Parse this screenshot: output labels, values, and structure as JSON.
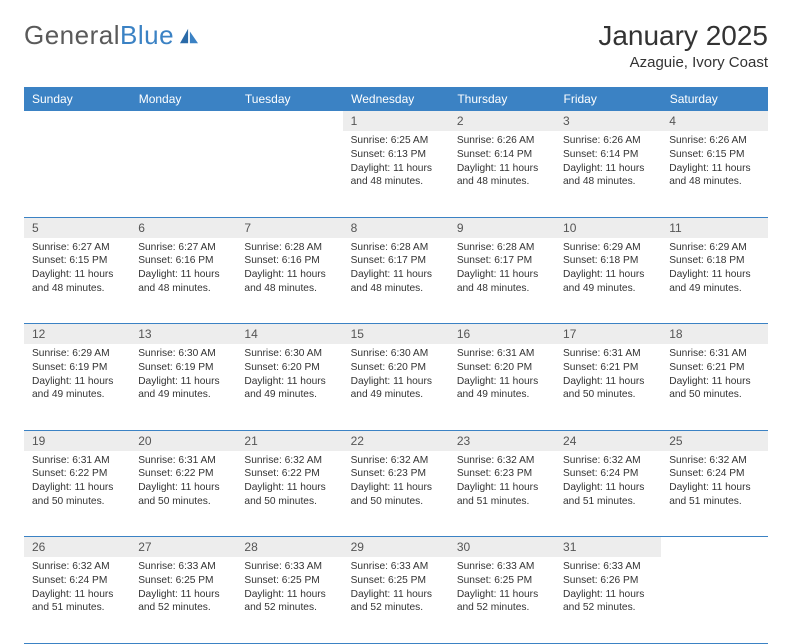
{
  "brand": {
    "name_a": "General",
    "name_b": "Blue"
  },
  "title": "January 2025",
  "location": "Azaguie, Ivory Coast",
  "colors": {
    "header_bg": "#3b82c4",
    "header_text": "#ffffff",
    "daynum_bg": "#ededed",
    "border": "#3b82c4",
    "text": "#333333",
    "page_bg": "#ffffff"
  },
  "day_headers": [
    "Sunday",
    "Monday",
    "Tuesday",
    "Wednesday",
    "Thursday",
    "Friday",
    "Saturday"
  ],
  "weeks": [
    [
      null,
      null,
      null,
      {
        "n": 1,
        "sr": "6:25 AM",
        "ss": "6:13 PM",
        "dl": "11 hours and 48 minutes."
      },
      {
        "n": 2,
        "sr": "6:26 AM",
        "ss": "6:14 PM",
        "dl": "11 hours and 48 minutes."
      },
      {
        "n": 3,
        "sr": "6:26 AM",
        "ss": "6:14 PM",
        "dl": "11 hours and 48 minutes."
      },
      {
        "n": 4,
        "sr": "6:26 AM",
        "ss": "6:15 PM",
        "dl": "11 hours and 48 minutes."
      }
    ],
    [
      {
        "n": 5,
        "sr": "6:27 AM",
        "ss": "6:15 PM",
        "dl": "11 hours and 48 minutes."
      },
      {
        "n": 6,
        "sr": "6:27 AM",
        "ss": "6:16 PM",
        "dl": "11 hours and 48 minutes."
      },
      {
        "n": 7,
        "sr": "6:28 AM",
        "ss": "6:16 PM",
        "dl": "11 hours and 48 minutes."
      },
      {
        "n": 8,
        "sr": "6:28 AM",
        "ss": "6:17 PM",
        "dl": "11 hours and 48 minutes."
      },
      {
        "n": 9,
        "sr": "6:28 AM",
        "ss": "6:17 PM",
        "dl": "11 hours and 48 minutes."
      },
      {
        "n": 10,
        "sr": "6:29 AM",
        "ss": "6:18 PM",
        "dl": "11 hours and 49 minutes."
      },
      {
        "n": 11,
        "sr": "6:29 AM",
        "ss": "6:18 PM",
        "dl": "11 hours and 49 minutes."
      }
    ],
    [
      {
        "n": 12,
        "sr": "6:29 AM",
        "ss": "6:19 PM",
        "dl": "11 hours and 49 minutes."
      },
      {
        "n": 13,
        "sr": "6:30 AM",
        "ss": "6:19 PM",
        "dl": "11 hours and 49 minutes."
      },
      {
        "n": 14,
        "sr": "6:30 AM",
        "ss": "6:20 PM",
        "dl": "11 hours and 49 minutes."
      },
      {
        "n": 15,
        "sr": "6:30 AM",
        "ss": "6:20 PM",
        "dl": "11 hours and 49 minutes."
      },
      {
        "n": 16,
        "sr": "6:31 AM",
        "ss": "6:20 PM",
        "dl": "11 hours and 49 minutes."
      },
      {
        "n": 17,
        "sr": "6:31 AM",
        "ss": "6:21 PM",
        "dl": "11 hours and 50 minutes."
      },
      {
        "n": 18,
        "sr": "6:31 AM",
        "ss": "6:21 PM",
        "dl": "11 hours and 50 minutes."
      }
    ],
    [
      {
        "n": 19,
        "sr": "6:31 AM",
        "ss": "6:22 PM",
        "dl": "11 hours and 50 minutes."
      },
      {
        "n": 20,
        "sr": "6:31 AM",
        "ss": "6:22 PM",
        "dl": "11 hours and 50 minutes."
      },
      {
        "n": 21,
        "sr": "6:32 AM",
        "ss": "6:22 PM",
        "dl": "11 hours and 50 minutes."
      },
      {
        "n": 22,
        "sr": "6:32 AM",
        "ss": "6:23 PM",
        "dl": "11 hours and 50 minutes."
      },
      {
        "n": 23,
        "sr": "6:32 AM",
        "ss": "6:23 PM",
        "dl": "11 hours and 51 minutes."
      },
      {
        "n": 24,
        "sr": "6:32 AM",
        "ss": "6:24 PM",
        "dl": "11 hours and 51 minutes."
      },
      {
        "n": 25,
        "sr": "6:32 AM",
        "ss": "6:24 PM",
        "dl": "11 hours and 51 minutes."
      }
    ],
    [
      {
        "n": 26,
        "sr": "6:32 AM",
        "ss": "6:24 PM",
        "dl": "11 hours and 51 minutes."
      },
      {
        "n": 27,
        "sr": "6:33 AM",
        "ss": "6:25 PM",
        "dl": "11 hours and 52 minutes."
      },
      {
        "n": 28,
        "sr": "6:33 AM",
        "ss": "6:25 PM",
        "dl": "11 hours and 52 minutes."
      },
      {
        "n": 29,
        "sr": "6:33 AM",
        "ss": "6:25 PM",
        "dl": "11 hours and 52 minutes."
      },
      {
        "n": 30,
        "sr": "6:33 AM",
        "ss": "6:25 PM",
        "dl": "11 hours and 52 minutes."
      },
      {
        "n": 31,
        "sr": "6:33 AM",
        "ss": "6:26 PM",
        "dl": "11 hours and 52 minutes."
      },
      null
    ]
  ],
  "labels": {
    "sunrise": "Sunrise:",
    "sunset": "Sunset:",
    "daylight": "Daylight:"
  }
}
